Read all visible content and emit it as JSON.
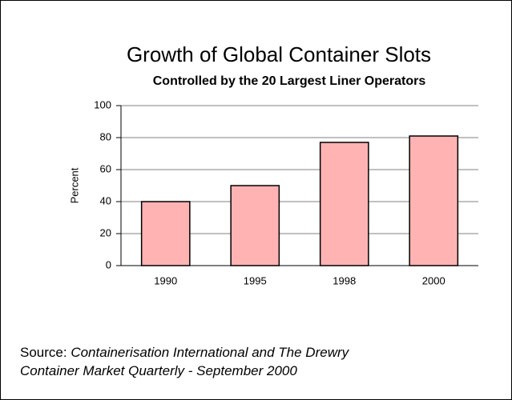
{
  "chart_data": {
    "type": "bar",
    "title": "Growth of Global Container Slots",
    "subtitle": "Controlled by the 20 Largest Liner Operators",
    "y_label": "Percent",
    "categories": [
      "1990",
      "1995",
      "1998",
      "2000"
    ],
    "values": [
      40,
      50,
      77,
      81
    ],
    "color": "#ffb3b3",
    "ylim": [
      0,
      100
    ],
    "yticks": [
      0,
      20,
      40,
      60,
      80,
      100
    ],
    "grid": true
  },
  "source": {
    "label": "Source:",
    "lines": [
      "Containerisation International and The Drewry",
      "Container Market Quarterly - September 2000"
    ]
  }
}
